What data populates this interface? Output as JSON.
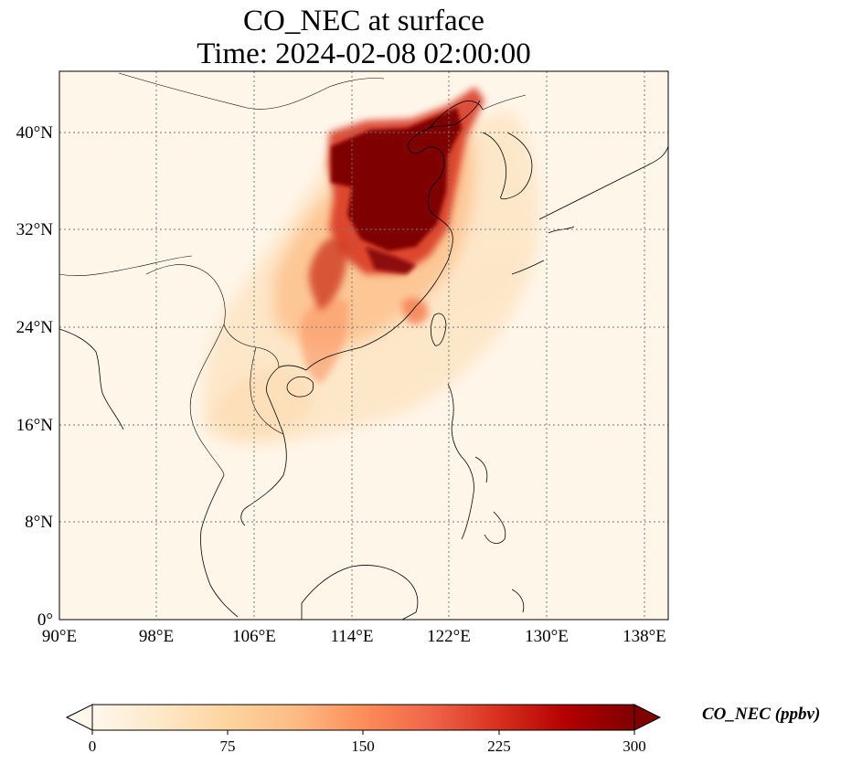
{
  "title": {
    "line1": "CO_NEC at surface",
    "line2": "Time: 2024-02-08 02:00:00"
  },
  "map": {
    "lon_ticks": [
      "90°E",
      "98°E",
      "106°E",
      "114°E",
      "122°E",
      "130°E",
      "138°E"
    ],
    "lat_ticks": [
      "0°",
      "8°N",
      "16°N",
      "24°N",
      "32°N",
      "40°N"
    ],
    "extent": {
      "lon_min": 90,
      "lon_max": 140,
      "lat_min": 0,
      "lat_max": 45
    },
    "gridlines": "dotted",
    "coastlines": true,
    "borders": true
  },
  "colorbar": {
    "label": "CO_NEC (ppbv)",
    "tick_labels": [
      "0",
      "75",
      "150",
      "225",
      "300"
    ],
    "ticks": [
      0,
      75,
      150,
      225,
      300
    ],
    "range": [
      0,
      300
    ],
    "extend": "both",
    "colormap": "OrRd",
    "colors": [
      "#fff7ec",
      "#fdd49e",
      "#fc8d59",
      "#d7301f",
      "#7f0000"
    ]
  }
}
